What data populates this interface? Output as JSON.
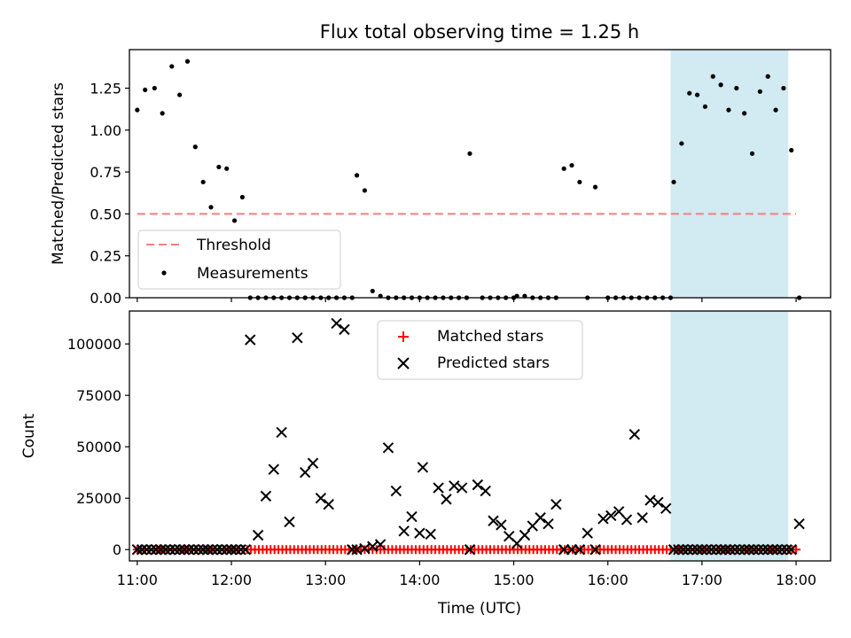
{
  "figure": {
    "title": "Flux total observing time = 1.25 h",
    "xlabel": "Time (UTC)",
    "x_tick_labels": [
      "11:00",
      "12:00",
      "13:00",
      "14:00",
      "15:00",
      "16:00",
      "17:00",
      "18:00"
    ],
    "highlight_color": "#add8e6"
  },
  "chart_data": [
    {
      "type": "scatter",
      "ylabel": "Matched/Predicted stars",
      "xlim": [
        "10:55",
        "18:22"
      ],
      "ylim": [
        0,
        1.48
      ],
      "y_tick_labels": [
        "0.00",
        "0.25",
        "0.50",
        "0.75",
        "1.00",
        "1.25"
      ],
      "y_ticks": [
        0,
        0.25,
        0.5,
        0.75,
        1.0,
        1.25
      ],
      "threshold": {
        "name": "Threshold",
        "value": 0.5,
        "x_start": "11:00",
        "x_end": "18:00",
        "color": "#f08080",
        "style": "dashed"
      },
      "highlight": {
        "x_start": "16:40",
        "x_end": "17:55"
      },
      "legend": {
        "position": "lower left",
        "entries": [
          "Threshold",
          "Measurements"
        ]
      },
      "series": [
        {
          "name": "Measurements",
          "marker": "dot",
          "color": "#000000",
          "points": [
            [
              "11:00",
              1.12
            ],
            [
              "11:05",
              1.24
            ],
            [
              "11:11",
              1.25
            ],
            [
              "11:16",
              1.1
            ],
            [
              "11:22",
              1.38
            ],
            [
              "11:27",
              1.21
            ],
            [
              "11:32",
              1.41
            ],
            [
              "11:37",
              0.9
            ],
            [
              "11:42",
              0.69
            ],
            [
              "11:47",
              0.54
            ],
            [
              "11:52",
              0.78
            ],
            [
              "11:57",
              0.77
            ],
            [
              "12:02",
              0.46
            ],
            [
              "12:07",
              0.6
            ],
            [
              "12:12",
              0.0
            ],
            [
              "12:17",
              0.0
            ],
            [
              "12:22",
              0.0
            ],
            [
              "12:27",
              0.0
            ],
            [
              "12:32",
              0.0
            ],
            [
              "12:37",
              0.0
            ],
            [
              "12:42",
              0.0
            ],
            [
              "12:47",
              0.0
            ],
            [
              "12:52",
              0.0
            ],
            [
              "12:57",
              0.0
            ],
            [
              "13:02",
              0.0
            ],
            [
              "13:07",
              0.0
            ],
            [
              "13:12",
              0.0
            ],
            [
              "13:17",
              0.0
            ],
            [
              "13:20",
              0.73
            ],
            [
              "13:25",
              0.64
            ],
            [
              "13:30",
              0.04
            ],
            [
              "13:35",
              0.01
            ],
            [
              "13:40",
              0.0
            ],
            [
              "13:45",
              0.0
            ],
            [
              "13:50",
              0.0
            ],
            [
              "13:55",
              0.0
            ],
            [
              "14:00",
              0.0
            ],
            [
              "14:05",
              0.0
            ],
            [
              "14:10",
              0.0
            ],
            [
              "14:15",
              0.0
            ],
            [
              "14:20",
              0.0
            ],
            [
              "14:25",
              0.0
            ],
            [
              "14:30",
              0.0
            ],
            [
              "14:32",
              0.86
            ],
            [
              "14:40",
              0.0
            ],
            [
              "14:45",
              0.0
            ],
            [
              "14:50",
              0.0
            ],
            [
              "14:55",
              0.0
            ],
            [
              "15:00",
              0.0
            ],
            [
              "15:02",
              0.01
            ],
            [
              "15:07",
              0.01
            ],
            [
              "15:12",
              0.0
            ],
            [
              "15:17",
              0.0
            ],
            [
              "15:22",
              0.0
            ],
            [
              "15:27",
              0.0
            ],
            [
              "15:32",
              0.77
            ],
            [
              "15:37",
              0.79
            ],
            [
              "15:42",
              0.69
            ],
            [
              "15:52",
              0.66
            ],
            [
              "15:47",
              0.0
            ],
            [
              "16:00",
              0.0
            ],
            [
              "16:05",
              0.0
            ],
            [
              "16:10",
              0.0
            ],
            [
              "16:15",
              0.0
            ],
            [
              "16:20",
              0.0
            ],
            [
              "16:25",
              0.0
            ],
            [
              "16:30",
              0.0
            ],
            [
              "16:35",
              0.0
            ],
            [
              "16:40",
              0.0
            ],
            [
              "16:42",
              0.69
            ],
            [
              "16:47",
              0.92
            ],
            [
              "16:52",
              1.22
            ],
            [
              "16:57",
              1.21
            ],
            [
              "17:02",
              1.14
            ],
            [
              "17:07",
              1.32
            ],
            [
              "17:12",
              1.27
            ],
            [
              "17:17",
              1.12
            ],
            [
              "17:22",
              1.25
            ],
            [
              "17:27",
              1.1
            ],
            [
              "17:32",
              0.86
            ],
            [
              "17:37",
              1.23
            ],
            [
              "17:42",
              1.32
            ],
            [
              "17:47",
              1.12
            ],
            [
              "17:52",
              1.25
            ],
            [
              "17:57",
              0.88
            ],
            [
              "18:02",
              0.0
            ]
          ]
        }
      ]
    },
    {
      "type": "scatter",
      "ylabel": "Count",
      "xlim": [
        "10:55",
        "18:22"
      ],
      "ylim": [
        -5500,
        116000
      ],
      "y_tick_labels": [
        "0",
        "25000",
        "50000",
        "75000",
        "100000"
      ],
      "y_ticks": [
        0,
        25000,
        50000,
        75000,
        100000
      ],
      "highlight": {
        "x_start": "16:40",
        "x_end": "17:55"
      },
      "legend": {
        "position": "upper center",
        "entries": [
          "Matched stars",
          "Predicted stars"
        ]
      },
      "series": [
        {
          "name": "Matched stars",
          "marker": "plus",
          "color": "#ff0000",
          "x_start": "11:00",
          "x_end": "18:02",
          "step_minutes": 2.5,
          "constant_value": 0
        },
        {
          "name": "Predicted stars",
          "marker": "x",
          "color": "#000000",
          "points": [
            [
              "11:00",
              0
            ],
            [
              "11:03",
              0
            ],
            [
              "11:06",
              0
            ],
            [
              "11:09",
              0
            ],
            [
              "11:12",
              0
            ],
            [
              "11:15",
              0
            ],
            [
              "11:18",
              0
            ],
            [
              "11:21",
              0
            ],
            [
              "11:24",
              0
            ],
            [
              "11:27",
              0
            ],
            [
              "11:30",
              0
            ],
            [
              "11:33",
              0
            ],
            [
              "11:36",
              0
            ],
            [
              "11:39",
              0
            ],
            [
              "11:42",
              0
            ],
            [
              "11:45",
              0
            ],
            [
              "11:48",
              0
            ],
            [
              "11:51",
              0
            ],
            [
              "11:54",
              0
            ],
            [
              "11:57",
              0
            ],
            [
              "12:00",
              0
            ],
            [
              "12:03",
              0
            ],
            [
              "12:06",
              0
            ],
            [
              "12:09",
              0
            ],
            [
              "12:12",
              102000
            ],
            [
              "12:17",
              7000
            ],
            [
              "12:22",
              26000
            ],
            [
              "12:27",
              39000
            ],
            [
              "12:32",
              57000
            ],
            [
              "12:37",
              13500
            ],
            [
              "12:42",
              103000
            ],
            [
              "12:47",
              37500
            ],
            [
              "12:52",
              42000
            ],
            [
              "12:57",
              25000
            ],
            [
              "13:02",
              22000
            ],
            [
              "13:07",
              110000
            ],
            [
              "13:12",
              107000
            ],
            [
              "13:17",
              0
            ],
            [
              "13:20",
              0
            ],
            [
              "13:25",
              500
            ],
            [
              "13:30",
              1500
            ],
            [
              "13:35",
              2500
            ],
            [
              "13:40",
              49500
            ],
            [
              "13:45",
              28500
            ],
            [
              "13:50",
              9000
            ],
            [
              "13:55",
              16000
            ],
            [
              "14:00",
              8000
            ],
            [
              "14:02",
              40000
            ],
            [
              "14:07",
              7500
            ],
            [
              "14:12",
              30000
            ],
            [
              "14:17",
              24500
            ],
            [
              "14:22",
              31000
            ],
            [
              "14:27",
              30000
            ],
            [
              "14:32",
              0
            ],
            [
              "14:37",
              31500
            ],
            [
              "14:42",
              28500
            ],
            [
              "14:47",
              14000
            ],
            [
              "14:52",
              12000
            ],
            [
              "14:57",
              6500
            ],
            [
              "15:02",
              3000
            ],
            [
              "15:07",
              7000
            ],
            [
              "15:12",
              11500
            ],
            [
              "15:17",
              15500
            ],
            [
              "15:22",
              12500
            ],
            [
              "15:27",
              22000
            ],
            [
              "15:32",
              0
            ],
            [
              "15:37",
              0
            ],
            [
              "15:42",
              0
            ],
            [
              "15:47",
              8000
            ],
            [
              "15:52",
              0
            ],
            [
              "15:57",
              15000
            ],
            [
              "16:02",
              16500
            ],
            [
              "16:07",
              18500
            ],
            [
              "16:12",
              14500
            ],
            [
              "16:17",
              56000
            ],
            [
              "16:22",
              15500
            ],
            [
              "16:27",
              24000
            ],
            [
              "16:32",
              23000
            ],
            [
              "16:37",
              20000
            ],
            [
              "16:42",
              0
            ],
            [
              "16:45",
              0
            ],
            [
              "16:48",
              0
            ],
            [
              "16:51",
              0
            ],
            [
              "16:54",
              0
            ],
            [
              "16:57",
              0
            ],
            [
              "17:00",
              0
            ],
            [
              "17:03",
              0
            ],
            [
              "17:06",
              0
            ],
            [
              "17:09",
              0
            ],
            [
              "17:12",
              0
            ],
            [
              "17:15",
              0
            ],
            [
              "17:18",
              0
            ],
            [
              "17:21",
              0
            ],
            [
              "17:24",
              0
            ],
            [
              "17:27",
              0
            ],
            [
              "17:30",
              0
            ],
            [
              "17:33",
              0
            ],
            [
              "17:36",
              0
            ],
            [
              "17:39",
              0
            ],
            [
              "17:42",
              0
            ],
            [
              "17:45",
              0
            ],
            [
              "17:48",
              0
            ],
            [
              "17:51",
              0
            ],
            [
              "17:54",
              0
            ],
            [
              "17:57",
              0
            ],
            [
              "18:02",
              12500
            ]
          ]
        }
      ]
    }
  ]
}
